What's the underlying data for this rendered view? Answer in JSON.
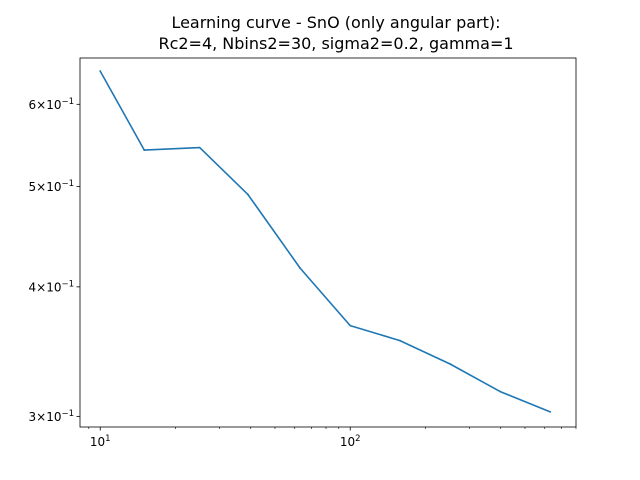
{
  "chart_data": {
    "type": "line",
    "title": "Learning curve - SnO (only angular part):",
    "subtitle": "Rc2=4, Nbins2=30, sigma2=0.2, gamma=1",
    "xlabel": "",
    "ylabel": "",
    "xscale": "log",
    "yscale": "log",
    "xlim": [
      8.3,
      800
    ],
    "ylim": [
      0.293,
      0.665
    ],
    "grid": false,
    "line_color": "#1f77b4",
    "x_major_ticks": [
      {
        "value": 10,
        "base": "10",
        "exp": "1"
      },
      {
        "value": 100,
        "base": "10",
        "exp": "2"
      }
    ],
    "y_ticks": [
      {
        "value": 0.3,
        "mant": "3",
        "base": "10",
        "exp": "−1"
      },
      {
        "value": 0.4,
        "mant": "4",
        "base": "10",
        "exp": "−1"
      },
      {
        "value": 0.5,
        "mant": "5",
        "base": "10",
        "exp": "−1"
      },
      {
        "value": 0.6,
        "mant": "6",
        "base": "10",
        "exp": "−1"
      }
    ],
    "series": [
      {
        "x": [
          10,
          15,
          25,
          39,
          63,
          100,
          158,
          251,
          398,
          631
        ],
        "y": [
          0.646,
          0.542,
          0.545,
          0.491,
          0.417,
          0.367,
          0.355,
          0.337,
          0.317,
          0.303
        ]
      }
    ]
  }
}
